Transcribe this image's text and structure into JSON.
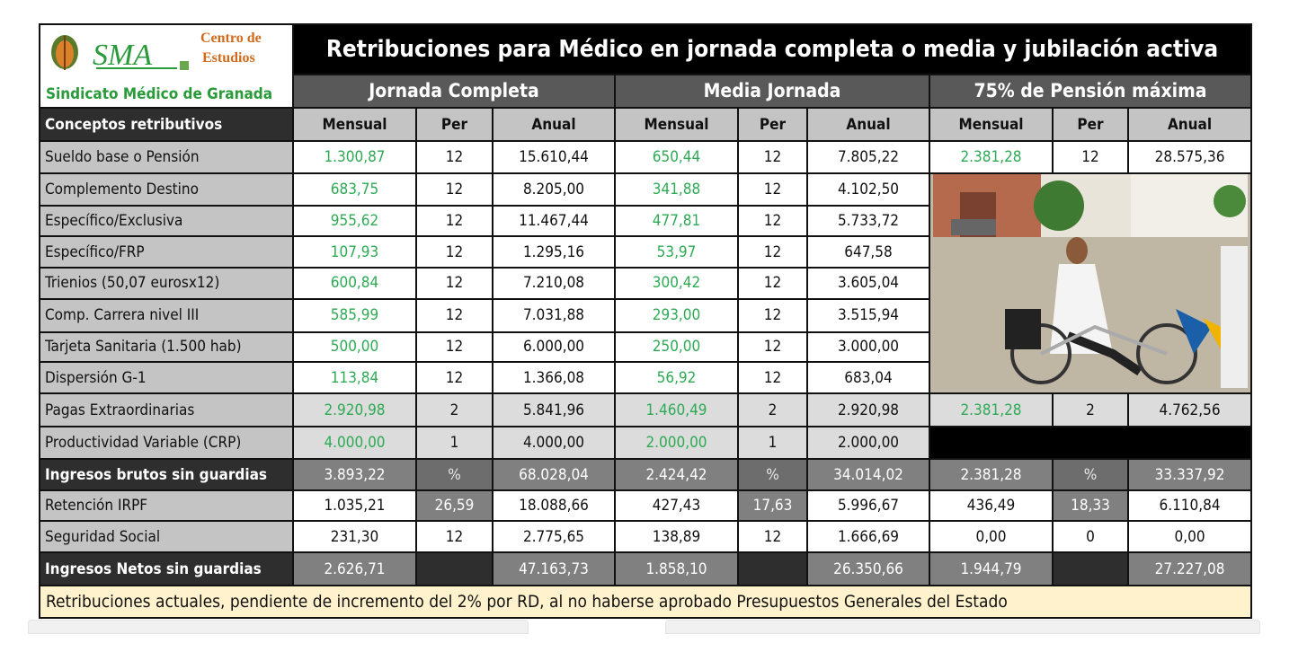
{
  "title": "Retribuciones para Médico en jornada completa o media y jubilación activa",
  "logo": {
    "name": "SMA",
    "line1": "Centro de",
    "line2": "Estudios",
    "org": "Sindicato Médico de Granada"
  },
  "groups": [
    "Jornada Completa",
    "Media Jornada",
    "75% de Pensión máxima"
  ],
  "col_headers": [
    "Conceptos retributivos",
    "Mensual",
    "Per",
    "Anual",
    "Mensual",
    "Per",
    "Anual",
    "Mensual",
    "Per",
    "Anual"
  ],
  "rows": [
    {
      "label": "Sueldo base o Pensión",
      "v": [
        "1.300,87",
        "12",
        "15.610,44",
        "650,44",
        "12",
        "7.805,22",
        "2.381,28",
        "12",
        "28.575,36"
      ]
    },
    {
      "label": "Complemento Destino",
      "v": [
        "683,75",
        "12",
        "8.205,00",
        "341,88",
        "12",
        "4.102,50"
      ]
    },
    {
      "label": "Específico/Exclusiva",
      "v": [
        "955,62",
        "12",
        "11.467,44",
        "477,81",
        "12",
        "5.733,72"
      ]
    },
    {
      "label": "Específico/FRP",
      "v": [
        "107,93",
        "12",
        "1.295,16",
        "53,97",
        "12",
        "647,58"
      ]
    },
    {
      "label": "Trienios (50,07 eurosx12)",
      "v": [
        "600,84",
        "12",
        "7.210,08",
        "300,42",
        "12",
        "3.605,04"
      ]
    },
    {
      "label": "Comp. Carrera nivel III",
      "v": [
        "585,99",
        "12",
        "7.031,88",
        "293,00",
        "12",
        "3.515,94"
      ]
    },
    {
      "label": "Tarjeta Sanitaria (1.500 hab)",
      "v": [
        "500,00",
        "12",
        "6.000,00",
        "250,00",
        "12",
        "3.000,00"
      ]
    },
    {
      "label": "Dispersión G-1",
      "v": [
        "113,84",
        "12",
        "1.366,08",
        "56,92",
        "12",
        "683,04"
      ]
    },
    {
      "label": "Pagas Extraordinarias",
      "v": [
        "2.920,98",
        "2",
        "5.841,96",
        "1.460,49",
        "2",
        "2.920,98",
        "2.381,28",
        "2",
        "4.762,56"
      ]
    },
    {
      "label": "Productividad Variable (CRP)",
      "v": [
        "4.000,00",
        "1",
        "4.000,00",
        "2.000,00",
        "1",
        "2.000,00"
      ]
    },
    {
      "label": "Ingresos brutos sin guardias",
      "v": [
        "3.893,22",
        "%",
        "68.028,04",
        "2.424,42",
        "%",
        "34.014,02",
        "2.381,28",
        "%",
        "33.337,92"
      ]
    },
    {
      "label": "Retención IRPF",
      "v": [
        "1.035,21",
        "26,59",
        "18.088,66",
        "427,43",
        "17,63",
        "5.996,67",
        "436,49",
        "18,33",
        "6.110,84"
      ]
    },
    {
      "label": "Seguridad Social",
      "v": [
        "231,30",
        "12",
        "2.775,65",
        "138,89",
        "12",
        "1.666,69",
        "0,00",
        "0",
        "0,00"
      ]
    },
    {
      "label": "Ingresos Netos sin guardias",
      "v": [
        "2.626,71",
        "",
        "47.163,73",
        "1.858,10",
        "",
        "26.350,66",
        "1.944,79",
        "",
        "27.227,08"
      ]
    }
  ],
  "footer": "Retribuciones actuales, pendiente de incremento del 2% por RD, al no haberse aprobado Presupuestos Generales del Estado",
  "colors": {
    "green": "#2eaa55",
    "footer_bg": "#fff2cc"
  }
}
